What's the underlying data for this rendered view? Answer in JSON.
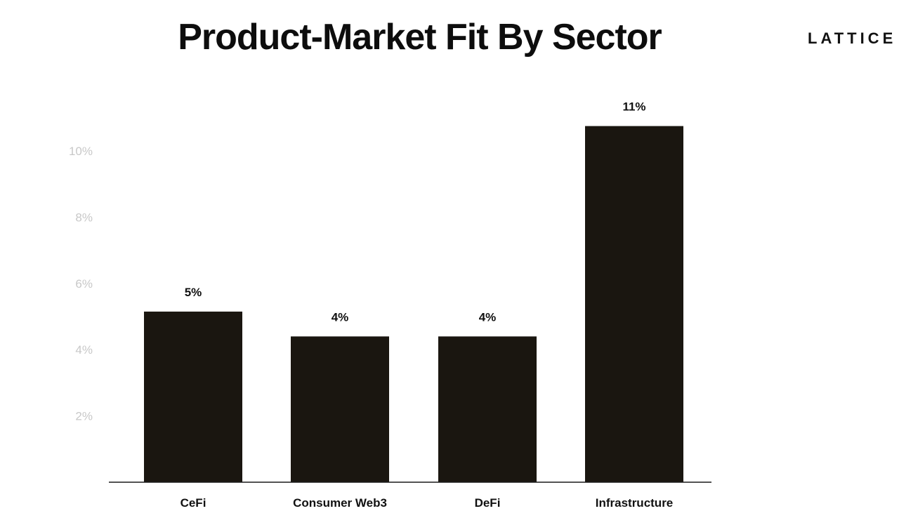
{
  "header": {
    "title": "Product-Market Fit By Sector",
    "logo_text": "LATTICE"
  },
  "colors": {
    "bar": "#1a1610",
    "axis": "#1a1a1a",
    "tick_text": "#c8c8c8",
    "label_text": "#111111"
  },
  "chart_data": {
    "type": "bar",
    "title": "Product-Market Fit By Sector",
    "xlabel": "",
    "ylabel": "",
    "categories": [
      "CeFi",
      "Consumer Web3",
      "DeFi",
      "Infrastructure"
    ],
    "values": [
      5.15,
      4.4,
      4.4,
      10.75
    ],
    "data_labels": [
      "5%",
      "4%",
      "4%",
      "11%"
    ],
    "y_ticks": [
      2,
      4,
      6,
      8,
      10
    ],
    "y_tick_labels": [
      "2%",
      "4%",
      "6%",
      "8%",
      "10%"
    ],
    "ylim": [
      0,
      12
    ],
    "grid": false,
    "legend": "none"
  }
}
